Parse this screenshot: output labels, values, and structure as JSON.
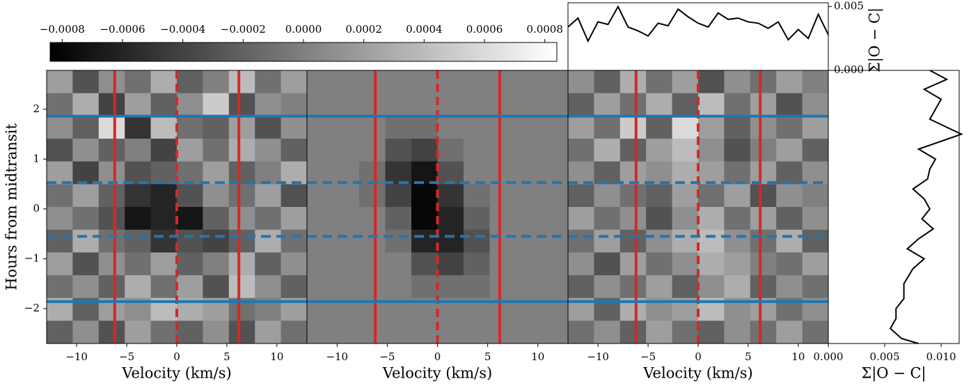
{
  "chart_data": [
    {
      "type": "colorbar",
      "colormap": "gray",
      "lim": [
        -0.00084,
        0.00084
      ],
      "ticks": [
        {
          "value": -0.0008,
          "label": "−0.0008"
        },
        {
          "value": -0.0006,
          "label": "−0.0006"
        },
        {
          "value": -0.0004,
          "label": "−0.0004"
        },
        {
          "value": -0.0002,
          "label": "−0.0002"
        },
        {
          "value": 0,
          "label": "0.0000"
        },
        {
          "value": 0.0002,
          "label": "0.0002"
        },
        {
          "value": 0.0004,
          "label": "0.0004"
        },
        {
          "value": 0.0006,
          "label": "0.0006"
        },
        {
          "value": 0.0008,
          "label": "0.0008"
        }
      ]
    },
    {
      "type": "heatmap",
      "xlabel": "Velocity (km/s)",
      "ylabel": "Hours from midtransit",
      "xlim": [
        -13,
        13
      ],
      "ylim": [
        -2.7,
        2.78
      ],
      "xticks": [
        {
          "value": -10,
          "label": "−10"
        },
        {
          "value": -5,
          "label": "−5"
        },
        0,
        5,
        10
      ],
      "yticks": [
        {
          "value": -2,
          "label": "−2"
        },
        {
          "value": -1,
          "label": "−1"
        },
        0,
        1,
        2
      ],
      "vlines_solid": [
        -6.2,
        6.2
      ],
      "vlines_dashed": [
        0
      ],
      "vline_color": "#d62728",
      "hlines_solid": [
        1.86,
        -1.86
      ],
      "hlines_dashed": [
        0.53,
        -0.55
      ],
      "hline_color": "#1f77b4",
      "z": [
        [
          0.0002,
          -0.0003,
          0.0001,
          -0.0001,
          0.0003,
          -0.0002,
          0,
          0.0004,
          -0.0001,
          0.0002
        ],
        [
          -0.0001,
          0.0003,
          -0.0004,
          0.0002,
          -0.0002,
          0.0001,
          0.0005,
          -0.0003,
          0.0001,
          0
        ],
        [
          0.0001,
          -0.0002,
          0.0006,
          -0.0005,
          0.0004,
          -0.0001,
          -0.0002,
          0.0002,
          -0.0003,
          0.0001
        ],
        [
          -0.0003,
          0.0001,
          -0.0002,
          0,
          -0.0004,
          0.0002,
          -0.0001,
          0.0003,
          0.0001,
          -0.0002
        ],
        [
          0.0002,
          -0.0004,
          0.0001,
          -0.0003,
          -0.0002,
          -0.0001,
          0.0002,
          -0.0002,
          0,
          0.0003
        ],
        [
          -0.0001,
          0.0002,
          -0.0002,
          -0.0005,
          -0.0006,
          -0.0003,
          0.0001,
          -0.0001,
          0.0002,
          -0.0003
        ],
        [
          0.0001,
          -0.0001,
          -0.0003,
          -0.0007,
          -0.0006,
          -0.0007,
          -0.0002,
          0.0001,
          -0.0001,
          0.0002
        ],
        [
          -0.0002,
          0.0003,
          -0.0001,
          -0.0002,
          -0.0005,
          -0.0003,
          -0.0004,
          -0.0002,
          0.0003,
          -0.0001
        ],
        [
          0.0002,
          -0.0003,
          0.0001,
          -0.0001,
          0.0002,
          -0.0002,
          0,
          0.0003,
          -0.0002,
          0.0001
        ],
        [
          -0.0001,
          0.0001,
          -0.0002,
          0.0003,
          -0.0001,
          0.0002,
          -0.0003,
          0.0004,
          0.0001,
          -0.0002
        ],
        [
          0.0003,
          -0.0002,
          0.0002,
          0.0001,
          0.0004,
          0.0003,
          0.0002,
          -0.0001,
          0,
          0.0002
        ],
        [
          -0.0002,
          0.0001,
          -0.0003,
          0.0002,
          -0.0001,
          -0.0002,
          0.0001,
          -0.0003,
          0.0002,
          -0.0001
        ]
      ]
    },
    {
      "type": "heatmap",
      "xlabel": "Velocity (km/s)",
      "xlim": [
        -13,
        13
      ],
      "ylim": [
        -2.7,
        2.78
      ],
      "xticks": [
        {
          "value": -10,
          "label": "−10"
        },
        {
          "value": -5,
          "label": "−5"
        },
        0,
        5,
        10
      ],
      "vlines_solid": [
        -6.2,
        6.2
      ],
      "vlines_dashed": [
        0
      ],
      "vline_color": "#d62728",
      "hlines_solid": [
        1.86,
        -1.86
      ],
      "hlines_dashed": [
        0.53,
        -0.55
      ],
      "hline_color": "#1f77b4",
      "z": [
        [
          0,
          0,
          0,
          0,
          0,
          0,
          0,
          0,
          0,
          0
        ],
        [
          0,
          0,
          0,
          0,
          0,
          0,
          0,
          0,
          0,
          0
        ],
        [
          0,
          0,
          0,
          -0.0001,
          -0.0001,
          0,
          0,
          0,
          0,
          0
        ],
        [
          0,
          0,
          0,
          -0.0003,
          -0.0004,
          -0.0001,
          0,
          0,
          0,
          0
        ],
        [
          0,
          0,
          -0.0001,
          -0.0005,
          -0.0007,
          -0.0003,
          0,
          0,
          0,
          0
        ],
        [
          0,
          0,
          -0.0001,
          -0.0004,
          -0.0008,
          -0.0005,
          -0.0001,
          0,
          0,
          0
        ],
        [
          0,
          0,
          0,
          -0.0002,
          -0.0008,
          -0.0006,
          -0.0002,
          0,
          0,
          0
        ],
        [
          0,
          0,
          0,
          -0.0001,
          -0.0006,
          -0.0006,
          -0.0003,
          0,
          0,
          0
        ],
        [
          0,
          0,
          0,
          0,
          -0.0003,
          -0.0004,
          -0.0002,
          0,
          0,
          0
        ],
        [
          0,
          0,
          0,
          0,
          -0.0001,
          -0.0001,
          -0.0001,
          0,
          0,
          0
        ],
        [
          0,
          0,
          0,
          0,
          0,
          0,
          0,
          0,
          0,
          0
        ],
        [
          0,
          0,
          0,
          0,
          0,
          0,
          0,
          0,
          0,
          0
        ]
      ]
    },
    {
      "type": "heatmap",
      "xlabel": "Velocity (km/s)",
      "xlim": [
        -13,
        13
      ],
      "ylim": [
        -2.7,
        2.78
      ],
      "xticks": [
        {
          "value": -10,
          "label": "−10"
        },
        {
          "value": -5,
          "label": "−5"
        },
        0,
        5,
        10
      ],
      "vlines_solid": [
        -6.2,
        6.2
      ],
      "vlines_dashed": [
        0
      ],
      "vline_color": "#d62728",
      "hlines_solid": [
        1.86,
        -1.86
      ],
      "hlines_dashed": [
        0.53,
        -0.55
      ],
      "hline_color": "#1f77b4",
      "z": [
        [
          0.0001,
          -0.0002,
          0.0003,
          -0.0001,
          0.0002,
          -0.0003,
          0.0001,
          -0.0001,
          0.0002,
          0
        ],
        [
          -0.0002,
          0.0002,
          -0.0001,
          0.0003,
          -0.0002,
          0.0004,
          -0.0001,
          0.0002,
          -0.0003,
          0.0001
        ],
        [
          0.0002,
          -0.0001,
          0.0005,
          -0.0002,
          0.0006,
          0.0002,
          -0.0002,
          0.0001,
          -0.0001,
          0.0002
        ],
        [
          -0.0001,
          0.0003,
          -0.0002,
          0.0002,
          0.0004,
          0.0001,
          -0.0003,
          0,
          0.0002,
          -0.0002
        ],
        [
          0.0001,
          -0.0002,
          0.0002,
          0.0001,
          0.0003,
          0.0002,
          -0.0001,
          0.0002,
          -0.0002,
          0.0001
        ],
        [
          -0.0002,
          0.0001,
          -0.0001,
          -0.0002,
          0.0002,
          -0.0001,
          0.0002,
          -0.0003,
          0.0001,
          0
        ],
        [
          0.0002,
          -0.0001,
          0.0001,
          -0.0003,
          0.0001,
          0.0003,
          -0.0001,
          0.0002,
          -0.0002,
          0.0001
        ],
        [
          -0.0001,
          0.0002,
          -0.0002,
          0.0001,
          0.0003,
          0.0004,
          0.0001,
          -0.0001,
          0.0003,
          -0.0002
        ],
        [
          0.0001,
          -0.0003,
          0.0002,
          -0.0001,
          0.0001,
          0.0003,
          0.0002,
          0,
          -0.0001,
          0.0002
        ],
        [
          -0.0002,
          0.0001,
          -0.0001,
          0.0002,
          -0.0002,
          0.0001,
          0.0003,
          -0.0002,
          0.0001,
          -0.0001
        ],
        [
          0.0002,
          -0.0002,
          0.0003,
          0.0001,
          0.0002,
          0.0004,
          0.0001,
          0.0002,
          -0.0001,
          0.0001
        ],
        [
          -0.0001,
          0.0001,
          -0.0002,
          0.0002,
          -0.0001,
          -0.0002,
          0.0001,
          -0.0001,
          0.0002,
          -0.0001
        ]
      ]
    },
    {
      "type": "line",
      "ylabel": "Σ|O − C|",
      "color": "#000000",
      "xlim": [
        -13,
        13
      ],
      "ylim": [
        0,
        0.0053
      ],
      "yticks": [
        {
          "value": 0,
          "label": "0.000"
        },
        {
          "value": 0.005,
          "label": "0.005"
        }
      ],
      "x": [
        -13,
        -12,
        -11,
        -10,
        -9,
        -8,
        -7,
        -6,
        -5,
        -4,
        -3,
        -2,
        -1,
        0,
        1,
        2,
        3,
        4,
        5,
        6,
        7,
        8,
        9,
        10,
        11,
        12,
        13
      ],
      "values": [
        0.0034,
        0.0041,
        0.0023,
        0.0038,
        0.0036,
        0.005,
        0.0034,
        0.0031,
        0.0027,
        0.0037,
        0.0035,
        0.0048,
        0.0042,
        0.0037,
        0.0034,
        0.0045,
        0.004,
        0.0041,
        0.0038,
        0.0037,
        0.0033,
        0.0038,
        0.0024,
        0.0032,
        0.0025,
        0.0044,
        0.0028
      ]
    },
    {
      "type": "vline",
      "xlabel": "Σ|O − C|",
      "color": "#000000",
      "xlim": [
        0,
        0.0116
      ],
      "ylim": [
        -2.7,
        2.78
      ],
      "xticks": [
        {
          "value": 0,
          "label": "0.000"
        },
        {
          "value": 0.005,
          "label": "0.005"
        },
        {
          "value": 0.01,
          "label": "0.010"
        }
      ],
      "y": [
        2.78,
        2.6,
        2.4,
        2.2,
        2.0,
        1.8,
        1.5,
        1.2,
        1.0,
        0.8,
        0.6,
        0.4,
        0.2,
        0,
        -0.2,
        -0.4,
        -0.6,
        -0.8,
        -1.0,
        -1.2,
        -1.5,
        -1.8,
        -2.0,
        -2.2,
        -2.4,
        -2.6,
        -2.7
      ],
      "values": [
        0.009,
        0.0105,
        0.0085,
        0.01,
        0.0095,
        0.009,
        0.0118,
        0.008,
        0.0095,
        0.009,
        0.0088,
        0.0075,
        0.0085,
        0.009,
        0.0083,
        0.0093,
        0.008,
        0.007,
        0.0085,
        0.0075,
        0.0067,
        0.0067,
        0.006,
        0.006,
        0.0055,
        0.0065,
        0.008
      ]
    }
  ]
}
